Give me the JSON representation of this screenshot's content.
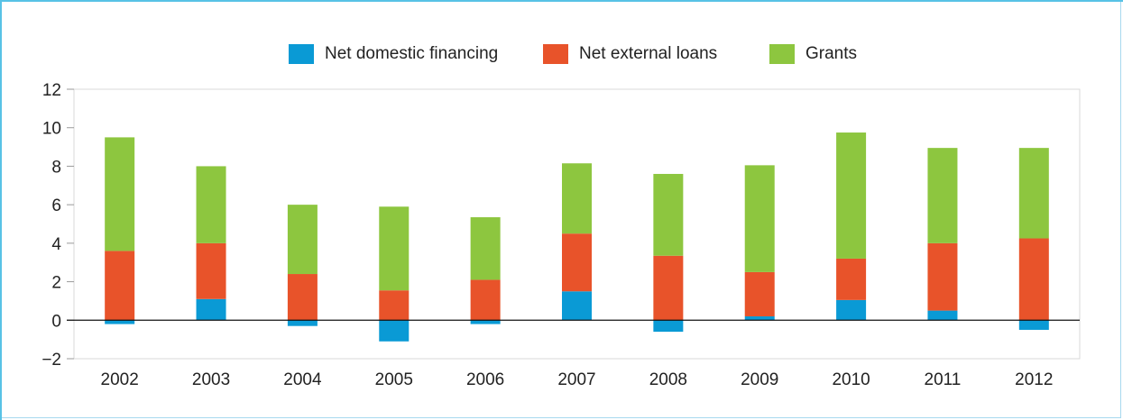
{
  "chart_data": {
    "type": "bar",
    "stacked": true,
    "categories": [
      "2002",
      "2003",
      "2004",
      "2005",
      "2006",
      "2007",
      "2008",
      "2009",
      "2010",
      "2011",
      "2012"
    ],
    "series": [
      {
        "name": "Net domestic financing",
        "color": "#0a9ad5",
        "values": [
          -0.2,
          1.1,
          -0.3,
          -1.1,
          -0.2,
          1.5,
          -0.6,
          0.2,
          1.05,
          0.5,
          -0.5
        ]
      },
      {
        "name": "Net external loans",
        "color": "#e8532a",
        "values": [
          3.6,
          2.9,
          2.4,
          1.55,
          2.1,
          3.0,
          3.35,
          2.3,
          2.15,
          3.5,
          4.25
        ]
      },
      {
        "name": "Grants",
        "color": "#8dc63f",
        "values": [
          5.9,
          4.0,
          3.6,
          4.35,
          3.25,
          3.65,
          4.25,
          5.55,
          6.55,
          4.95,
          4.7
        ]
      }
    ],
    "yticks": [
      "12",
      "10",
      "8",
      "6",
      "4",
      "2",
      "0",
      "−2"
    ],
    "ylim": [
      -2,
      12
    ],
    "grid": false,
    "legend_position": "top-center"
  }
}
